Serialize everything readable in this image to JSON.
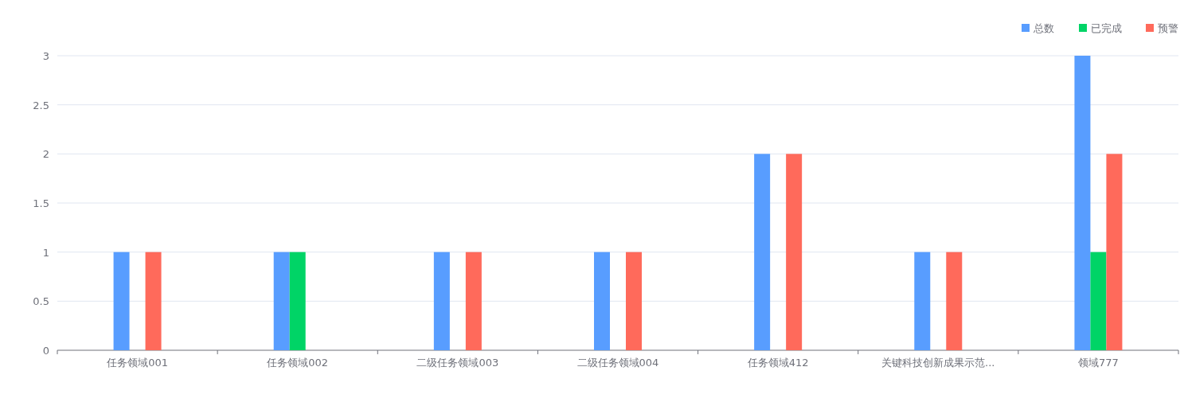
{
  "chart_data": {
    "type": "bar",
    "categories": [
      "任务领域001",
      "任务领域002",
      "二级任务领域003",
      "二级任务领域004",
      "任务领域412",
      "关键科技创新成果示范...",
      "领域777"
    ],
    "series": [
      {
        "name": "总数",
        "color": "#589dff",
        "values": [
          1,
          1,
          1,
          1,
          2,
          1,
          3
        ]
      },
      {
        "name": "已完成",
        "color": "#00d466",
        "values": [
          0,
          1,
          0,
          0,
          0,
          0,
          1
        ]
      },
      {
        "name": "预警",
        "color": "#ff6a5b",
        "values": [
          1,
          0,
          1,
          1,
          2,
          1,
          2
        ]
      }
    ],
    "ylim": [
      0,
      3
    ],
    "yticks": [
      0,
      0.5,
      1,
      1.5,
      2,
      2.5,
      3
    ],
    "grid": "y",
    "legend": "top right"
  }
}
